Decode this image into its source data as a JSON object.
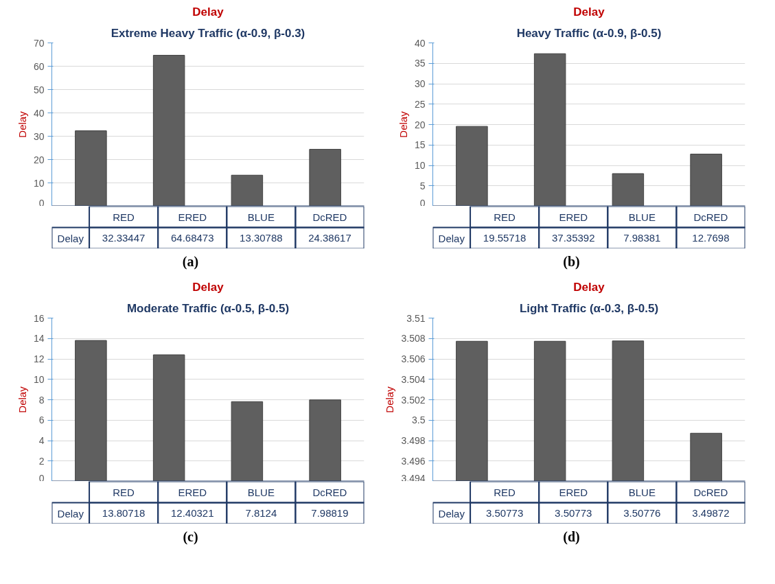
{
  "chart_data": [
    {
      "type": "bar",
      "title": "Delay",
      "subtitle": "Extreme Heavy Traffic (α-0.9, β-0.3)",
      "ylabel": "Delay",
      "categories": [
        "RED",
        "ERED",
        "BLUE",
        "DcRED"
      ],
      "series": [
        {
          "name": "Delay",
          "color": "#5f5f5f",
          "values": [
            32.33447,
            64.68473,
            13.30788,
            24.38617
          ]
        }
      ],
      "ylim": [
        0,
        70
      ],
      "yticks": [
        0,
        10,
        20,
        30,
        40,
        50,
        60,
        70
      ],
      "grid": "y",
      "data_labels": true,
      "annotations": [
        "(a)"
      ]
    },
    {
      "type": "bar",
      "title": "Delay",
      "subtitle": "Heavy Traffic (α-0.9, β-0.5)",
      "ylabel": "Delay",
      "categories": [
        "RED",
        "ERED",
        "BLUE",
        "DcRED"
      ],
      "series": [
        {
          "name": "Delay",
          "color": "#5f5f5f",
          "values": [
            19.55718,
            37.35392,
            7.98381,
            12.7698
          ]
        }
      ],
      "ylim": [
        0,
        40
      ],
      "yticks": [
        0,
        5,
        10,
        15,
        20,
        25,
        30,
        35,
        40
      ],
      "grid": "y",
      "data_labels": true,
      "annotations": [
        "(b)"
      ]
    },
    {
      "type": "bar",
      "title": "Delay",
      "subtitle": "Moderate Traffic (α-0.5, β-0.5)",
      "ylabel": "Delay",
      "categories": [
        "RED",
        "ERED",
        "BLUE",
        "DcRED"
      ],
      "series": [
        {
          "name": "Delay",
          "color": "#5f5f5f",
          "values": [
            13.80718,
            12.40321,
            7.8124,
            7.98819
          ]
        }
      ],
      "ylim": [
        0,
        16
      ],
      "yticks": [
        0,
        2,
        4,
        6,
        8,
        10,
        12,
        14,
        16
      ],
      "grid": "y",
      "data_labels": true,
      "annotations": [
        "(c)"
      ]
    },
    {
      "type": "bar",
      "title": "Delay",
      "subtitle": "Light Traffic (α-0.3, β-0.5)",
      "ylabel": "Delay",
      "categories": [
        "RED",
        "ERED",
        "BLUE",
        "DcRED"
      ],
      "series": [
        {
          "name": "Delay",
          "color": "#5f5f5f",
          "values": [
            3.50773,
            3.50773,
            3.50776,
            3.49872
          ]
        }
      ],
      "ylim": [
        3.494,
        3.51
      ],
      "yticks": [
        3.494,
        3.496,
        3.498,
        3.5,
        3.502,
        3.504,
        3.506,
        3.508,
        3.51
      ],
      "grid": "y",
      "data_labels": true,
      "annotations": [
        "(d)"
      ]
    }
  ]
}
